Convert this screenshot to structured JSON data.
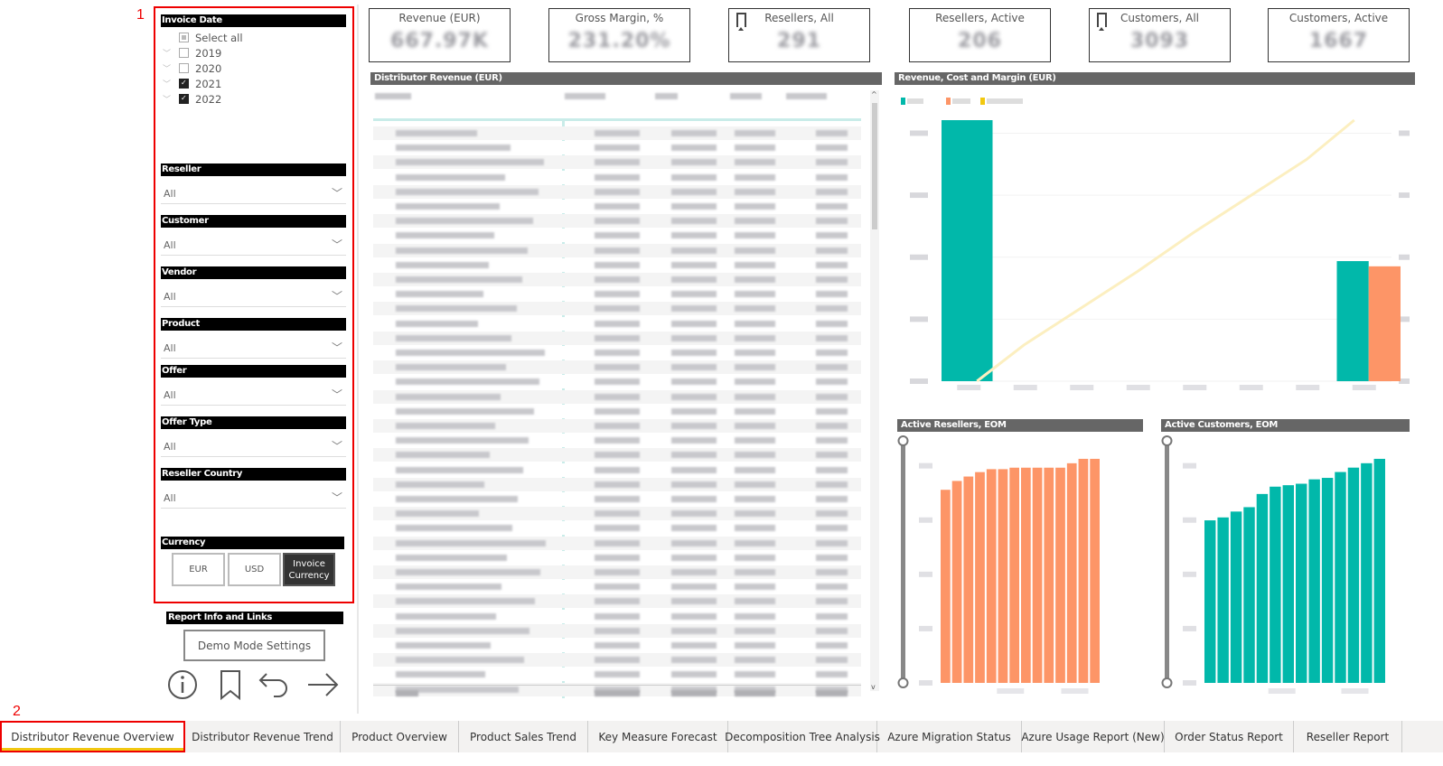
{
  "annotations": [
    "1",
    "2"
  ],
  "filters": {
    "invoice_date": {
      "title": "Invoice Date",
      "items": [
        {
          "label": "Select all",
          "state": "partial",
          "expandable": false
        },
        {
          "label": "2019",
          "state": "off",
          "expandable": true
        },
        {
          "label": "2020",
          "state": "off",
          "expandable": true
        },
        {
          "label": "2021",
          "state": "on",
          "expandable": true
        },
        {
          "label": "2022",
          "state": "on",
          "expandable": true
        }
      ]
    },
    "dropdowns": [
      {
        "title": "Reseller",
        "value": "All"
      },
      {
        "title": "Customer",
        "value": "All"
      },
      {
        "title": "Vendor",
        "value": "All"
      },
      {
        "title": "Product",
        "value": "All"
      },
      {
        "title": "Offer",
        "value": "All"
      },
      {
        "title": "Offer Type",
        "value": "All"
      },
      {
        "title": "Reseller Country",
        "value": "All"
      }
    ],
    "currency": {
      "title": "Currency",
      "options": [
        "EUR",
        "USD",
        "Invoice Currency"
      ],
      "selected": "Invoice Currency"
    }
  },
  "report_info": {
    "title": "Report Info and Links",
    "demo_button": "Demo Mode Settings",
    "icons": [
      "info-icon",
      "bookmark-icon",
      "back-arrow-icon",
      "forward-arrow-icon"
    ]
  },
  "kpis": [
    {
      "label": "Revenue (EUR)",
      "value": "667.97K",
      "bookmark": false
    },
    {
      "label": "Gross Margin, %",
      "value": "231.20%",
      "bookmark": false
    },
    {
      "label": "Resellers, All",
      "value": "291",
      "bookmark": true
    },
    {
      "label": "Resellers, Active",
      "value": "206",
      "bookmark": false
    },
    {
      "label": "Customers, All",
      "value": "3093",
      "bookmark": true
    },
    {
      "label": "Customers, Active",
      "value": "1667",
      "bookmark": false
    }
  ],
  "visuals": {
    "table_title": "Distributor Revenue (EUR)",
    "waterfall_title": "Revenue, Cost and Margin (EUR)",
    "resellers_title": "Active Resellers, EOM",
    "customers_title": "Active Customers, EOM"
  },
  "colors": {
    "teal": "#01b8aa",
    "orange": "#fd9567",
    "yellow": "#f2c80f",
    "header": "#666666",
    "accent_red": "#e00000"
  },
  "chart_data": [
    {
      "type": "bar",
      "title": "Revenue, Cost and Margin (EUR)",
      "note_values_relative": true,
      "series": [
        {
          "color": "#01b8aa",
          "values": [
            100,
            0,
            0,
            0,
            0,
            0,
            0,
            46
          ]
        },
        {
          "color": "#fd9567",
          "values": [
            0,
            0,
            0,
            0,
            0,
            0,
            0,
            44
          ]
        },
        {
          "type": "line",
          "color": "#f2c80f",
          "values": [
            0,
            14,
            28,
            42,
            57,
            71,
            85,
            100
          ]
        }
      ]
    },
    {
      "type": "bar",
      "title": "Active Resellers, EOM",
      "color": "#fd9567",
      "values": [
        655,
        685,
        700,
        715,
        725,
        725,
        730,
        730,
        730,
        730,
        730,
        745,
        760,
        760
      ]
    },
    {
      "type": "bar",
      "title": "Active Customers, EOM",
      "color": "#01b8aa",
      "values": [
        555,
        565,
        585,
        600,
        645,
        670,
        675,
        680,
        695,
        700,
        720,
        735,
        750,
        765
      ]
    }
  ],
  "tabs": [
    {
      "label": "Distributor Revenue Overview",
      "active": true
    },
    {
      "label": "Distributor Revenue Trend"
    },
    {
      "label": "Product Overview"
    },
    {
      "label": "Product Sales Trend"
    },
    {
      "label": "Key Measure Forecast"
    },
    {
      "label": "Decomposition Tree Analysis"
    },
    {
      "label": "Azure Migration Status"
    },
    {
      "label": "Azure Usage Report (New)"
    },
    {
      "label": "Order Status Report"
    },
    {
      "label": "Reseller Report"
    }
  ]
}
